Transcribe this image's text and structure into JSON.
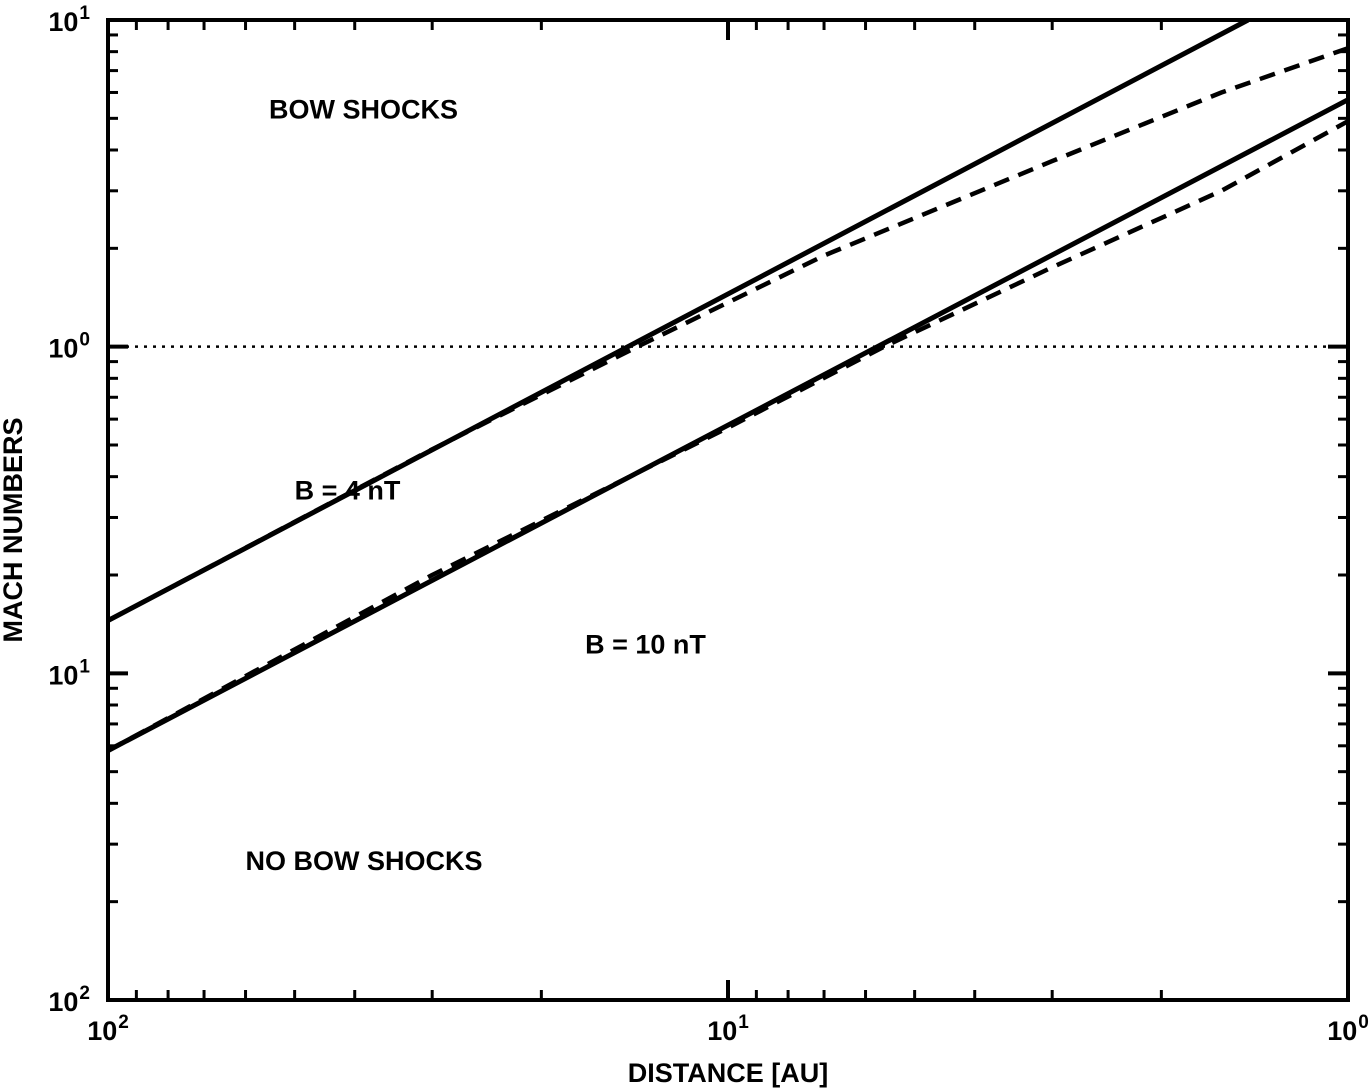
{
  "chart_data": {
    "type": "line",
    "title": "",
    "xlabel": "DISTANCE [AU]",
    "ylabel": "MACH NUMBERS",
    "x_scale": "log",
    "y_scale": "log",
    "x_reversed": true,
    "xlim": [
      100,
      1
    ],
    "ylim": [
      0.01,
      10
    ],
    "grid": false,
    "x_ticks": [
      {
        "value": 100,
        "base": "10",
        "exp": "2"
      },
      {
        "value": 10,
        "base": "10",
        "exp": "1"
      },
      {
        "value": 1,
        "base": "10",
        "exp": "0"
      }
    ],
    "y_ticks": [
      {
        "value": 0.01,
        "base": "10",
        "exp": "2"
      },
      {
        "value": 0.1,
        "base": "10",
        "exp": "1"
      },
      {
        "value": 1,
        "base": "10",
        "exp": "0"
      },
      {
        "value": 10,
        "base": "10",
        "exp": "1"
      }
    ],
    "reference_line": {
      "y": 1,
      "style": "dotted"
    },
    "annotations": [
      {
        "id": "bow-shocks",
        "text": "BOW SHOCKS",
        "x": 55,
        "y": 5.0
      },
      {
        "id": "b-4nt",
        "text": "B = 4 nT",
        "x": 50,
        "y": 0.34
      },
      {
        "id": "b-10nt",
        "text": "B = 10 nT",
        "x": 17,
        "y": 0.115
      },
      {
        "id": "no-bow-shocks",
        "text": "NO BOW SHOCKS",
        "x": 60,
        "y": 0.025
      }
    ],
    "series": [
      {
        "style": "solid",
        "x": [
          100,
          1.45
        ],
        "y": [
          0.145,
          10.0
        ]
      },
      {
        "style": "dashed",
        "x": [
          100,
          31,
          14,
          7,
          3,
          1.6,
          1
        ],
        "y": [
          0.145,
          0.47,
          1.0,
          1.9,
          3.7,
          6.0,
          8.2
        ]
      },
      {
        "style": "solid",
        "x": [
          100,
          1
        ],
        "y": [
          0.058,
          5.7
        ]
      },
      {
        "style": "dashed",
        "x": [
          100,
          30,
          10,
          5.6,
          3,
          1.6,
          1
        ],
        "y": [
          0.058,
          0.2,
          0.565,
          1.0,
          1.75,
          3.0,
          4.9
        ]
      }
    ]
  }
}
